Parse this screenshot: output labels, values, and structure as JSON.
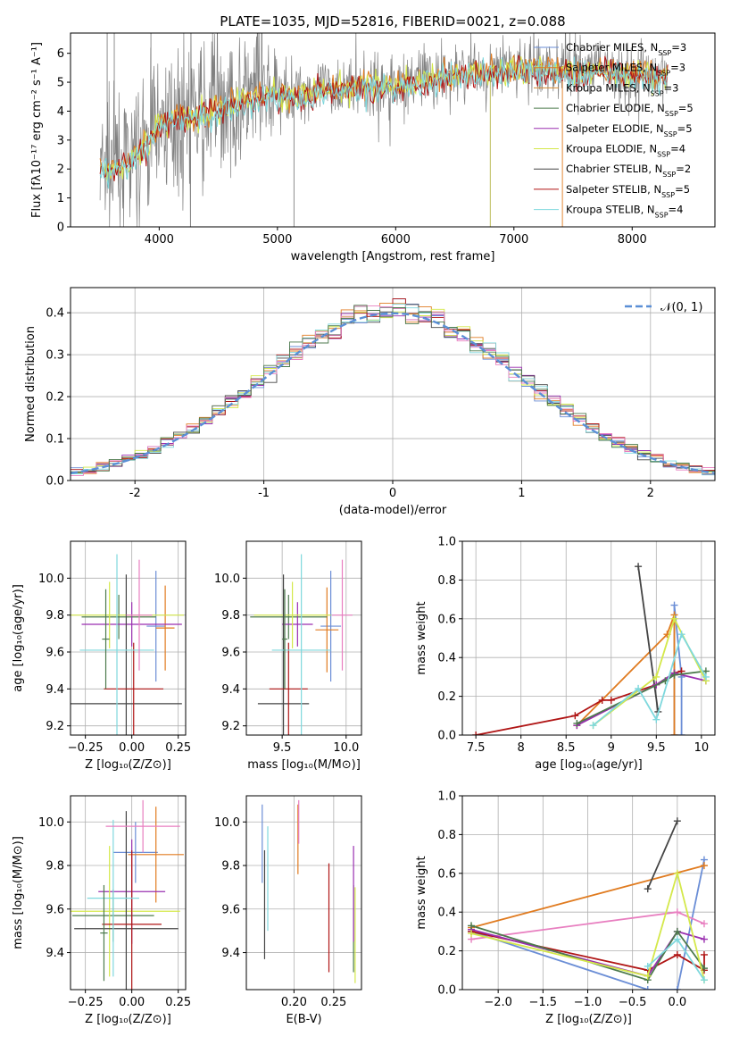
{
  "figure": {
    "title": "PLATE=1035, MJD=52816, FIBERID=0021, z=0.088",
    "models": [
      {
        "name": "Chabrier MILES",
        "nssp": "3",
        "color": "#6b8ed6"
      },
      {
        "name": "Salpeter MILES",
        "nssp": "3",
        "color": "#e07b20"
      },
      {
        "name": "Kroupa MILES",
        "nssp": "3",
        "color": "#d38a33"
      },
      {
        "name": "Chabrier ELODIE",
        "nssp": "5",
        "color": "#4c7a4c"
      },
      {
        "name": "Salpeter ELODIE",
        "nssp": "5",
        "color": "#9a2fb0"
      },
      {
        "name": "Kroupa ELODIE",
        "nssp": "4",
        "color": "#d4e84a"
      },
      {
        "name": "Chabrier STELIB",
        "nssp": "2",
        "color": "#444444"
      },
      {
        "name": "Salpeter STELIB",
        "nssp": "5",
        "color": "#b01515"
      },
      {
        "name": "Kroupa STELIB",
        "nssp": "4",
        "color": "#7fd8dd"
      }
    ],
    "extra_colors": {
      "pink": "#e87fc0",
      "data": "#808080",
      "normal": "#5b8fd6"
    }
  },
  "chart_data": [
    {
      "id": "spectrum",
      "type": "line",
      "title": "PLATE=1035, MJD=52816, FIBERID=0021, z=0.088",
      "xlabel": "wavelength [Angstrom, rest frame]",
      "ylabel": "Flux [fλ10⁻¹⁷ erg cm⁻² s⁻¹ A⁻¹]",
      "xlim": [
        3250,
        8700
      ],
      "ylim": [
        0,
        6.7
      ],
      "xticks": [
        4000,
        5000,
        6000,
        7000,
        8000
      ],
      "yticks": [
        0,
        1,
        2,
        3,
        4,
        5,
        6
      ],
      "legend": "top-right",
      "continuum": {
        "x": [
          3500,
          3700,
          3900,
          4000,
          4100,
          4300,
          4500,
          4700,
          4900,
          5100,
          5300,
          5500,
          5700,
          5900,
          6100,
          6300,
          6500,
          6700,
          6900,
          7100,
          7300,
          7500,
          7700,
          7900,
          8100,
          8300
        ],
        "y": [
          2.0,
          2.2,
          2.9,
          3.6,
          3.8,
          3.9,
          4.1,
          4.4,
          4.6,
          4.6,
          4.7,
          4.8,
          4.9,
          4.9,
          5.0,
          5.15,
          5.3,
          5.4,
          5.45,
          5.5,
          5.45,
          5.4,
          5.4,
          5.35,
          5.3,
          5.25
        ]
      }
    },
    {
      "id": "residuals",
      "type": "step",
      "xlabel": "(data-model)/error",
      "ylabel": "Normed distribution",
      "xlim": [
        -2.5,
        2.5
      ],
      "ylim": [
        0,
        0.46
      ],
      "xticks": [
        -2,
        -1,
        0,
        1,
        2
      ],
      "yticks": [
        0.0,
        0.1,
        0.2,
        0.3,
        0.4
      ],
      "legend_label": "𝒩(0, 1)",
      "bin_width": 0.1,
      "normal": {
        "mean": 0,
        "sigma": 1
      }
    },
    {
      "id": "age_vs_Z",
      "type": "errorbar",
      "xlabel": "Z [log₁₀(Z/Z⊙)]",
      "ylabel": "age  [log₁₀(age/yr)]",
      "xlim": [
        -0.33,
        0.29
      ],
      "ylim": [
        9.15,
        10.2
      ],
      "xticks": [
        -0.25,
        0.0,
        0.25
      ],
      "xtick_labels": [
        "−0.25",
        "0.00",
        "0.25"
      ],
      "yticks": [
        9.2,
        9.4,
        9.6,
        9.8,
        10.0
      ],
      "points": [
        {
          "m": 0,
          "x": 0.13,
          "y": 9.74,
          "xerr": 0.05,
          "yerr": 0.3
        },
        {
          "m": 1,
          "x": 0.18,
          "y": 9.73,
          "xerr": 0.05,
          "yerr": 0.23
        },
        {
          "m": 3,
          "x": -0.07,
          "y": 9.79,
          "xerr": 0.2,
          "yerr": 0.12
        },
        {
          "m": 4,
          "x": 0.0,
          "y": 9.75,
          "xerr": 0.27,
          "yerr": 0.12
        },
        {
          "m": 5,
          "x": -0.12,
          "y": 9.8,
          "xerr": 0.4,
          "yerr": 0.18
        },
        {
          "m": 6,
          "x": -0.03,
          "y": 9.32,
          "xerr": 0.3,
          "yerr": 0.7
        },
        {
          "m": 7,
          "x": 0.01,
          "y": 9.4,
          "xerr": 0.16,
          "yerr": 0.25
        },
        {
          "m": 8,
          "x": -0.08,
          "y": 9.61,
          "xerr": 0.2,
          "yerr": 0.52
        },
        {
          "m": 9,
          "x": 0.04,
          "y": 9.8,
          "xerr": 0.07,
          "yerr": 0.3
        },
        {
          "m": 3,
          "x": -0.14,
          "y": 9.67,
          "xerr": 0.02,
          "yerr": 0.27
        }
      ]
    },
    {
      "id": "age_vs_mass",
      "type": "errorbar",
      "xlabel": "mass [log₁₀(M/M⊙)]",
      "xlim": [
        9.22,
        10.12
      ],
      "ylim": [
        9.15,
        10.2
      ],
      "xticks": [
        9.5,
        10.0
      ],
      "xtick_labels": [
        "9.5",
        "10.0"
      ],
      "yticks": [
        9.2,
        9.4,
        9.6,
        9.8,
        10.0
      ],
      "points": [
        {
          "m": 0,
          "x": 9.88,
          "y": 9.74,
          "xerr": 0.08,
          "yerr": 0.3
        },
        {
          "m": 1,
          "x": 9.85,
          "y": 9.72,
          "xerr": 0.09,
          "yerr": 0.23
        },
        {
          "m": 3,
          "x": 9.55,
          "y": 9.79,
          "xerr": 0.3,
          "yerr": 0.12
        },
        {
          "m": 4,
          "x": 9.62,
          "y": 9.75,
          "xerr": 0.12,
          "yerr": 0.12
        },
        {
          "m": 5,
          "x": 9.58,
          "y": 9.8,
          "xerr": 0.3,
          "yerr": 0.18
        },
        {
          "m": 6,
          "x": 9.51,
          "y": 9.32,
          "xerr": 0.2,
          "yerr": 0.7
        },
        {
          "m": 7,
          "x": 9.55,
          "y": 9.4,
          "xerr": 0.15,
          "yerr": 0.25
        },
        {
          "m": 8,
          "x": 9.65,
          "y": 9.61,
          "xerr": 0.23,
          "yerr": 0.52
        },
        {
          "m": 9,
          "x": 9.97,
          "y": 9.8,
          "xerr": 0.08,
          "yerr": 0.3
        },
        {
          "m": 3,
          "x": 9.52,
          "y": 9.67,
          "xerr": 0.02,
          "yerr": 0.27
        }
      ]
    },
    {
      "id": "weight_vs_age",
      "type": "line",
      "xlabel": "age  [log₁₀(age/yr)]",
      "ylabel": "mass weight",
      "xlim": [
        7.35,
        10.15
      ],
      "ylim": [
        0,
        1.0
      ],
      "xticks": [
        7.5,
        8.0,
        8.5,
        9.0,
        9.5,
        10.0
      ],
      "yticks": [
        0.0,
        0.2,
        0.4,
        0.6,
        0.8,
        1.0
      ],
      "series": [
        {
          "m": 0,
          "x": [
            9.7,
            9.7,
            9.78,
            9.78
          ],
          "y": [
            0.0,
            0.67,
            0.3,
            0.0
          ]
        },
        {
          "m": 1,
          "x": [
            8.62,
            9.62,
            9.7,
            9.7
          ],
          "y": [
            0.05,
            0.52,
            0.62,
            0.0
          ]
        },
        {
          "m": 6,
          "x": [
            9.3,
            9.52
          ],
          "y": [
            0.87,
            0.12
          ]
        },
        {
          "m": 7,
          "x": [
            7.5,
            8.6,
            8.9,
            9.0,
            9.5,
            9.7,
            9.78
          ],
          "y": [
            0.0,
            0.1,
            0.18,
            0.18,
            0.26,
            0.32,
            0.33
          ]
        },
        {
          "m": 4,
          "x": [
            8.62,
            9.5,
            9.7,
            10.05
          ],
          "y": [
            0.05,
            0.26,
            0.32,
            0.28
          ]
        },
        {
          "m": 3,
          "x": [
            8.62,
            9.6,
            9.7,
            10.05
          ],
          "y": [
            0.06,
            0.28,
            0.31,
            0.33
          ]
        },
        {
          "m": 5,
          "x": [
            8.8,
            9.5,
            9.7,
            10.05
          ],
          "y": [
            0.05,
            0.3,
            0.6,
            0.28
          ]
        },
        {
          "m": 8,
          "x": [
            8.8,
            9.3,
            9.5,
            9.78,
            10.05
          ],
          "y": [
            0.05,
            0.24,
            0.08,
            0.52,
            0.3
          ]
        }
      ]
    },
    {
      "id": "mass_vs_Z",
      "type": "errorbar",
      "xlabel": "Z [log₁₀(Z/Z⊙)]",
      "ylabel": "mass [log₁₀(M/M⊙)]",
      "xlim": [
        -0.33,
        0.29
      ],
      "ylim": [
        9.23,
        10.12
      ],
      "xticks": [
        -0.25,
        0.0,
        0.25
      ],
      "xtick_labels": [
        "−0.25",
        "0.00",
        "0.25"
      ],
      "yticks": [
        9.4,
        9.6,
        9.8,
        10.0
      ],
      "points": [
        {
          "m": 0,
          "x": 0.02,
          "y": 9.86,
          "xerr": 0.12,
          "yerr": 0.14
        },
        {
          "m": 1,
          "x": 0.13,
          "y": 9.85,
          "xerr": 0.15,
          "yerr": 0.22
        },
        {
          "m": 3,
          "x": -0.1,
          "y": 9.57,
          "xerr": 0.22,
          "yerr": 0.12
        },
        {
          "m": 4,
          "x": 0.0,
          "y": 9.68,
          "xerr": 0.18,
          "yerr": 0.24
        },
        {
          "m": 5,
          "x": -0.12,
          "y": 9.59,
          "xerr": 0.38,
          "yerr": 0.3
        },
        {
          "m": 6,
          "x": -0.03,
          "y": 9.51,
          "xerr": 0.28,
          "yerr": 0.54
        },
        {
          "m": 7,
          "x": 0.0,
          "y": 9.53,
          "xerr": 0.16,
          "yerr": 0.34
        },
        {
          "m": 8,
          "x": -0.1,
          "y": 9.65,
          "xerr": 0.14,
          "yerr": 0.36
        },
        {
          "m": 9,
          "x": 0.06,
          "y": 9.98,
          "xerr": 0.2,
          "yerr": 0.12
        },
        {
          "m": 3,
          "x": -0.15,
          "y": 9.49,
          "xerr": 0.02,
          "yerr": 0.22
        }
      ]
    },
    {
      "id": "mass_vs_EBV",
      "type": "errorbar",
      "xlabel": "E(B-V)",
      "xlim": [
        0.14,
        0.285
      ],
      "ylim": [
        9.23,
        10.12
      ],
      "xticks": [
        0.2,
        0.25
      ],
      "xtick_labels": [
        "0.20",
        "0.25"
      ],
      "yticks": [
        9.4,
        9.6,
        9.8,
        10.0
      ],
      "points": [
        {
          "m": 0,
          "x": 0.16,
          "y": 9.9,
          "xerr": 0,
          "yerr": 0.18
        },
        {
          "m": 1,
          "x": 0.205,
          "y": 9.92,
          "xerr": 0,
          "yerr": 0.16
        },
        {
          "m": 3,
          "x": 0.275,
          "y": 9.51,
          "xerr": 0,
          "yerr": 0.2
        },
        {
          "m": 4,
          "x": 0.275,
          "y": 9.67,
          "xerr": 0,
          "yerr": 0.22
        },
        {
          "m": 5,
          "x": 0.277,
          "y": 9.48,
          "xerr": 0,
          "yerr": 0.22
        },
        {
          "m": 6,
          "x": 0.163,
          "y": 9.62,
          "xerr": 0,
          "yerr": 0.25
        },
        {
          "m": 7,
          "x": 0.244,
          "y": 9.56,
          "xerr": 0,
          "yerr": 0.25
        },
        {
          "m": 8,
          "x": 0.167,
          "y": 9.74,
          "xerr": 0,
          "yerr": 0.24
        },
        {
          "m": 9,
          "x": 0.206,
          "y": 10.0,
          "xerr": 0,
          "yerr": 0.1
        }
      ]
    },
    {
      "id": "weight_vs_Z",
      "type": "line",
      "xlabel": "Z [log₁₀(Z/Z⊙)]",
      "ylabel": "mass weight",
      "xlim": [
        -2.4,
        0.42
      ],
      "ylim": [
        0,
        1.0
      ],
      "xticks": [
        -2.0,
        -1.5,
        -1.0,
        -0.5,
        0.0
      ],
      "xtick_labels": [
        "−2.0",
        "−1.5",
        "−1.0",
        "−0.5",
        "0.0"
      ],
      "yticks": [
        0.0,
        0.2,
        0.4,
        0.6,
        0.8,
        1.0
      ],
      "series": [
        {
          "m": 0,
          "x": [
            -2.3,
            -0.33,
            0.0,
            0.3
          ],
          "y": [
            0.3,
            0.0,
            0.0,
            0.67
          ]
        },
        {
          "m": 1,
          "x": [
            -2.3,
            0.3
          ],
          "y": [
            0.32,
            0.64
          ]
        },
        {
          "m": 9,
          "x": [
            -2.3,
            0.0,
            0.3
          ],
          "y": [
            0.26,
            0.4,
            0.34
          ]
        },
        {
          "m": 6,
          "x": [
            -0.33,
            0.0
          ],
          "y": [
            0.52,
            0.87
          ]
        },
        {
          "m": 7,
          "x": [
            -2.3,
            -0.33,
            0.0,
            0.3,
            0.3
          ],
          "y": [
            0.3,
            0.1,
            0.18,
            0.1,
            0.18
          ]
        },
        {
          "m": 4,
          "x": [
            -2.3,
            -0.33,
            0.0,
            0.3
          ],
          "y": [
            0.31,
            0.07,
            0.3,
            0.26
          ]
        },
        {
          "m": 3,
          "x": [
            -2.3,
            -0.33,
            0.0,
            0.3
          ],
          "y": [
            0.33,
            0.05,
            0.3,
            0.11
          ]
        },
        {
          "m": 5,
          "x": [
            -2.3,
            -0.33,
            0.0,
            0.3
          ],
          "y": [
            0.29,
            0.07,
            0.6,
            0.05
          ]
        },
        {
          "m": 8,
          "x": [
            -0.33,
            0.0,
            0.3
          ],
          "y": [
            0.12,
            0.26,
            0.05
          ]
        }
      ]
    }
  ]
}
